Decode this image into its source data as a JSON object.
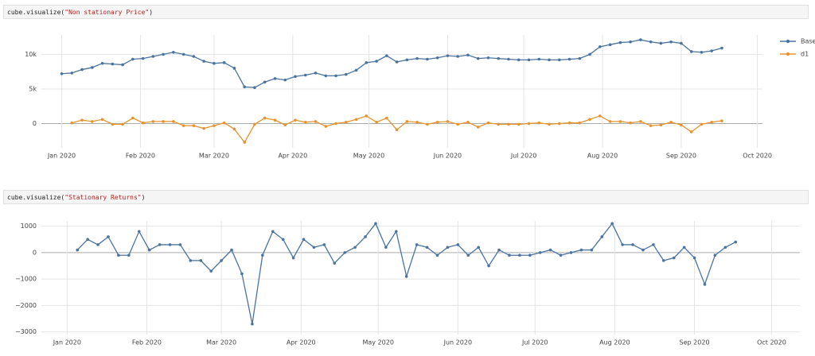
{
  "cells": [
    {
      "prefix": "cube.visualize(",
      "arg": "\"Non stationary Price\"",
      "suffix": ")"
    },
    {
      "prefix": "cube.visualize(",
      "arg": "\"Stationary Returns\"",
      "suffix": ")"
    }
  ],
  "chart_data": [
    {
      "type": "line",
      "x": [
        "2020-01-01",
        "2020-01-05",
        "2020-01-09",
        "2020-01-13",
        "2020-01-17",
        "2020-01-21",
        "2020-01-25",
        "2020-01-29",
        "2020-02-02",
        "2020-02-06",
        "2020-02-10",
        "2020-02-14",
        "2020-02-18",
        "2020-02-22",
        "2020-02-26",
        "2020-03-01",
        "2020-03-05",
        "2020-03-09",
        "2020-03-13",
        "2020-03-17",
        "2020-03-21",
        "2020-03-25",
        "2020-03-29",
        "2020-04-02",
        "2020-04-06",
        "2020-04-10",
        "2020-04-14",
        "2020-04-18",
        "2020-04-22",
        "2020-04-26",
        "2020-04-30",
        "2020-05-04",
        "2020-05-08",
        "2020-05-12",
        "2020-05-16",
        "2020-05-20",
        "2020-05-24",
        "2020-05-28",
        "2020-06-01",
        "2020-06-05",
        "2020-06-09",
        "2020-06-13",
        "2020-06-17",
        "2020-06-21",
        "2020-06-25",
        "2020-06-29",
        "2020-07-03",
        "2020-07-07",
        "2020-07-11",
        "2020-07-15",
        "2020-07-19",
        "2020-07-23",
        "2020-07-27",
        "2020-07-31",
        "2020-08-04",
        "2020-08-08",
        "2020-08-12",
        "2020-08-16",
        "2020-08-20",
        "2020-08-24",
        "2020-08-28",
        "2020-09-01",
        "2020-09-05",
        "2020-09-09",
        "2020-09-13",
        "2020-09-17"
      ],
      "series": [
        {
          "name": "Base",
          "color": "#4a73a0",
          "values": [
            7200,
            7300,
            7800,
            8100,
            8700,
            8600,
            8500,
            9300,
            9400,
            9700,
            10000,
            10300,
            10000,
            9700,
            9000,
            8700,
            8800,
            8000,
            5300,
            5200,
            6000,
            6500,
            6300,
            6800,
            7000,
            7300,
            6900,
            6900,
            7100,
            7700,
            8800,
            9000,
            9800,
            8900,
            9200,
            9400,
            9300,
            9500,
            9800,
            9700,
            9900,
            9400,
            9500,
            9400,
            9300,
            9200,
            9200,
            9300,
            9200,
            9200,
            9300,
            9400,
            10000,
            11100,
            11400,
            11700,
            11800,
            12100,
            11800,
            11600,
            11800,
            11600,
            10400,
            10300,
            10500,
            10900
          ]
        },
        {
          "name": "d1",
          "color": "#e8922c",
          "values": [
            null,
            100,
            500,
            300,
            600,
            -100,
            -100,
            800,
            100,
            300,
            300,
            300,
            -300,
            -300,
            -700,
            -300,
            100,
            -800,
            -2700,
            -100,
            800,
            500,
            -200,
            500,
            200,
            300,
            -400,
            0,
            200,
            600,
            1100,
            200,
            800,
            -900,
            300,
            200,
            -100,
            200,
            300,
            -100,
            200,
            -500,
            100,
            -100,
            -100,
            -100,
            0,
            100,
            -100,
            0,
            100,
            100,
            600,
            1100,
            300,
            300,
            100,
            300,
            -300,
            -200,
            200,
            -200,
            -1200,
            -100,
            200,
            400
          ]
        }
      ],
      "xlim": [
        "2019-12-24",
        "2020-10-03"
      ],
      "xticks": [
        {
          "value": "2020-01-01",
          "label": "Jan 2020"
        },
        {
          "value": "2020-02-01",
          "label": "Feb 2020"
        },
        {
          "value": "2020-03-01",
          "label": "Mar 2020"
        },
        {
          "value": "2020-04-01",
          "label": "Apr 2020"
        },
        {
          "value": "2020-05-01",
          "label": "May 2020"
        },
        {
          "value": "2020-06-01",
          "label": "Jun 2020"
        },
        {
          "value": "2020-07-01",
          "label": "Jul 2020"
        },
        {
          "value": "2020-08-01",
          "label": "Aug 2020"
        },
        {
          "value": "2020-09-01",
          "label": "Sep 2020"
        },
        {
          "value": "2020-10-01",
          "label": "Oct 2020"
        }
      ],
      "ylim": [
        -3500,
        12800
      ],
      "yticks": [
        0,
        {
          "value": 5000,
          "label": "5k"
        },
        {
          "value": 10000,
          "label": "10k"
        }
      ],
      "grid": true,
      "legend": "right"
    },
    {
      "type": "line",
      "x": [
        "2020-01-01",
        "2020-01-05",
        "2020-01-09",
        "2020-01-13",
        "2020-01-17",
        "2020-01-21",
        "2020-01-25",
        "2020-01-29",
        "2020-02-02",
        "2020-02-06",
        "2020-02-10",
        "2020-02-14",
        "2020-02-18",
        "2020-02-22",
        "2020-02-26",
        "2020-03-01",
        "2020-03-05",
        "2020-03-09",
        "2020-03-13",
        "2020-03-17",
        "2020-03-21",
        "2020-03-25",
        "2020-03-29",
        "2020-04-02",
        "2020-04-06",
        "2020-04-10",
        "2020-04-14",
        "2020-04-18",
        "2020-04-22",
        "2020-04-26",
        "2020-04-30",
        "2020-05-04",
        "2020-05-08",
        "2020-05-12",
        "2020-05-16",
        "2020-05-20",
        "2020-05-24",
        "2020-05-28",
        "2020-06-01",
        "2020-06-05",
        "2020-06-09",
        "2020-06-13",
        "2020-06-17",
        "2020-06-21",
        "2020-06-25",
        "2020-06-29",
        "2020-07-03",
        "2020-07-07",
        "2020-07-11",
        "2020-07-15",
        "2020-07-19",
        "2020-07-23",
        "2020-07-27",
        "2020-07-31",
        "2020-08-04",
        "2020-08-08",
        "2020-08-12",
        "2020-08-16",
        "2020-08-20",
        "2020-08-24",
        "2020-08-28",
        "2020-09-01",
        "2020-09-05",
        "2020-09-09",
        "2020-09-13",
        "2020-09-17"
      ],
      "color": "#4a73a0",
      "values": [
        null,
        100,
        500,
        300,
        600,
        -100,
        -100,
        800,
        100,
        300,
        300,
        300,
        -300,
        -300,
        -700,
        -300,
        100,
        -800,
        -2700,
        -100,
        800,
        500,
        -200,
        500,
        200,
        300,
        -400,
        0,
        200,
        600,
        1100,
        200,
        800,
        -900,
        300,
        200,
        -100,
        200,
        300,
        -100,
        200,
        -500,
        100,
        -100,
        -100,
        -100,
        0,
        100,
        -100,
        0,
        100,
        100,
        600,
        1100,
        300,
        300,
        100,
        300,
        -300,
        -200,
        200,
        -200,
        -1200,
        -100,
        200,
        400
      ],
      "xlim": [
        "2019-12-22",
        "2020-10-12"
      ],
      "xticks": [
        {
          "value": "2020-01-01",
          "label": "Jan 2020"
        },
        {
          "value": "2020-02-01",
          "label": "Feb 2020"
        },
        {
          "value": "2020-03-01",
          "label": "Mar 2020"
        },
        {
          "value": "2020-04-01",
          "label": "Apr 2020"
        },
        {
          "value": "2020-05-01",
          "label": "May 2020"
        },
        {
          "value": "2020-06-01",
          "label": "Jun 2020"
        },
        {
          "value": "2020-07-01",
          "label": "Jul 2020"
        },
        {
          "value": "2020-08-01",
          "label": "Aug 2020"
        },
        {
          "value": "2020-09-01",
          "label": "Sep 2020"
        },
        {
          "value": "2020-10-01",
          "label": "Oct 2020"
        }
      ],
      "ylim": [
        -3100,
        1200
      ],
      "yticks": [
        {
          "value": -3000,
          "label": "−3000"
        },
        {
          "value": -2000,
          "label": "−2000"
        },
        {
          "value": -1000,
          "label": "−1000"
        },
        0,
        1000
      ],
      "grid": true
    }
  ]
}
